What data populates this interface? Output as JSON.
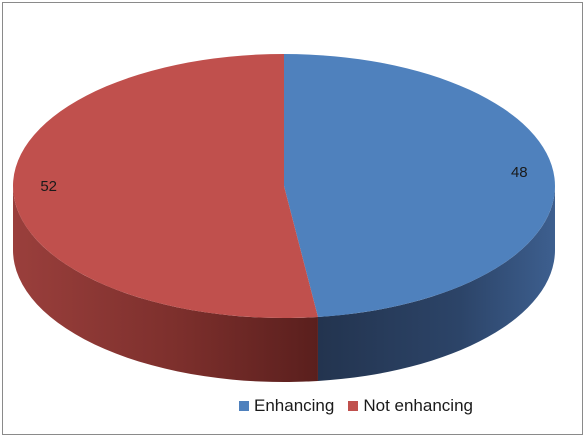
{
  "chart_data": {
    "type": "pie",
    "style": "3d",
    "categories": [
      "Enhancing",
      "Not enhancing"
    ],
    "values": [
      48,
      52
    ],
    "data_labels": [
      "48",
      "52"
    ],
    "colors": [
      "#4f81bd",
      "#c0504d"
    ],
    "legend": {
      "placement": "bottom-right",
      "entries": [
        "Enhancing",
        "Not enhancing"
      ]
    }
  }
}
